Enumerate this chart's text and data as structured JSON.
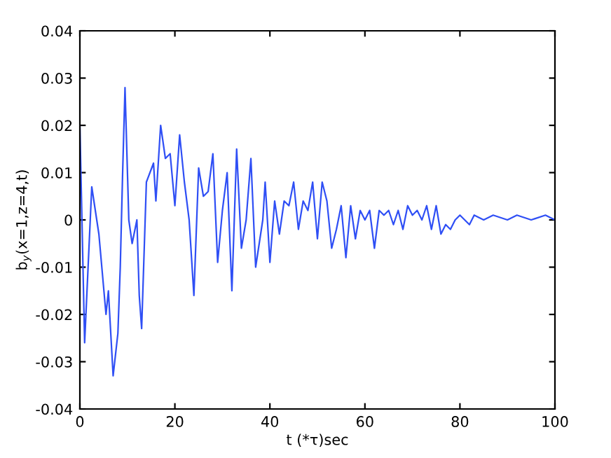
{
  "chart_data": {
    "type": "line",
    "xlabel": "t (*τ)sec",
    "ylabel": "b$_{y}$(x=1,z=4,t)",
    "x": [
      0,
      1,
      2.5,
      4,
      5.5,
      6,
      7,
      8,
      8.5,
      9,
      9.5,
      10.3,
      11,
      12,
      12.5,
      13,
      14,
      15.5,
      16,
      17,
      18,
      19,
      20,
      21,
      22,
      23,
      24,
      25,
      26,
      27,
      28,
      29,
      30,
      31,
      32,
      33,
      34,
      35,
      36,
      37,
      38.5,
      39,
      40,
      41,
      42,
      43,
      44,
      45,
      46,
      47,
      48,
      49,
      50,
      51,
      52,
      53,
      54,
      55,
      56,
      57,
      58,
      59,
      60,
      61,
      62,
      63,
      64,
      65,
      66,
      67,
      68,
      69,
      70,
      71,
      72,
      73,
      74,
      75,
      76,
      77,
      78,
      79,
      80,
      82,
      83,
      85,
      87,
      90,
      92,
      95,
      98,
      100
    ],
    "series": [
      {
        "color": "#2f4ff5",
        "values": [
          0.02,
          -0.026,
          0.007,
          -0.003,
          -0.02,
          -0.015,
          -0.033,
          -0.024,
          -0.01,
          0.01,
          0.028,
          0.0,
          -0.005,
          0.0,
          -0.016,
          -0.023,
          0.008,
          0.012,
          0.004,
          0.02,
          0.013,
          0.014,
          0.003,
          0.018,
          0.008,
          0.0,
          -0.016,
          0.011,
          0.005,
          0.006,
          0.014,
          -0.009,
          0.002,
          0.01,
          -0.015,
          0.015,
          -0.006,
          0.0,
          0.013,
          -0.01,
          0.0,
          0.008,
          -0.009,
          0.004,
          -0.003,
          0.004,
          0.003,
          0.008,
          -0.002,
          0.004,
          0.002,
          0.008,
          -0.004,
          0.008,
          0.004,
          -0.006,
          -0.002,
          0.003,
          -0.008,
          0.003,
          -0.004,
          0.002,
          0.0,
          0.002,
          -0.006,
          0.002,
          0.001,
          0.002,
          -0.001,
          0.002,
          -0.002,
          0.003,
          0.001,
          0.002,
          0.0,
          0.003,
          -0.002,
          0.003,
          -0.003,
          -0.001,
          -0.002,
          0.0,
          0.001,
          -0.001,
          0.001,
          0.0,
          0.001,
          0.0,
          0.001,
          0.0,
          0.001,
          0.0
        ]
      }
    ],
    "xlim": [
      0,
      100
    ],
    "xticks": [
      0,
      20,
      40,
      60,
      80,
      100
    ],
    "ylim": [
      -0.04,
      0.04
    ],
    "yticks": [
      {
        "value": -0.04,
        "label": "-0.04"
      },
      {
        "value": -0.03,
        "label": "-0.03"
      },
      {
        "value": -0.02,
        "label": "-0.02"
      },
      {
        "value": -0.01,
        "label": "-0.01"
      },
      0,
      {
        "value": 0.01,
        "label": "0.01"
      },
      {
        "value": 0.02,
        "label": "0.02"
      },
      {
        "value": 0.03,
        "label": "0.03"
      },
      {
        "value": 0.04,
        "label": "0.04"
      }
    ],
    "grid": false,
    "legend": false,
    "marker": "none",
    "line_style": "solid"
  }
}
